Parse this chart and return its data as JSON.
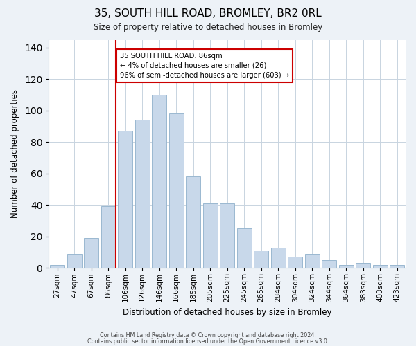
{
  "title": "35, SOUTH HILL ROAD, BROMLEY, BR2 0RL",
  "subtitle": "Size of property relative to detached houses in Bromley",
  "xlabel": "Distribution of detached houses by size in Bromley",
  "ylabel": "Number of detached properties",
  "bar_labels": [
    "27sqm",
    "47sqm",
    "67sqm",
    "86sqm",
    "106sqm",
    "126sqm",
    "146sqm",
    "166sqm",
    "185sqm",
    "205sqm",
    "225sqm",
    "245sqm",
    "265sqm",
    "284sqm",
    "304sqm",
    "324sqm",
    "344sqm",
    "364sqm",
    "383sqm",
    "403sqm",
    "423sqm"
  ],
  "bar_values": [
    2,
    9,
    19,
    39,
    87,
    94,
    110,
    98,
    58,
    41,
    41,
    25,
    11,
    13,
    7,
    9,
    5,
    2,
    3,
    2,
    2
  ],
  "bar_color": "#c8d8ea",
  "bar_edge_color": "#9ab8d0",
  "highlight_index": 3,
  "highlight_line_color": "#cc0000",
  "annotation_text": "35 SOUTH HILL ROAD: 86sqm\n← 4% of detached houses are smaller (26)\n96% of semi-detached houses are larger (603) →",
  "annotation_box_color": "#ffffff",
  "annotation_box_edge_color": "#cc0000",
  "ylim": [
    0,
    145
  ],
  "yticks": [
    0,
    20,
    40,
    60,
    80,
    100,
    120,
    140
  ],
  "footer1": "Contains HM Land Registry data © Crown copyright and database right 2024.",
  "footer2": "Contains public sector information licensed under the Open Government Licence v3.0.",
  "background_color": "#edf2f7",
  "plot_background_color": "#ffffff",
  "grid_color": "#c8d4e0"
}
